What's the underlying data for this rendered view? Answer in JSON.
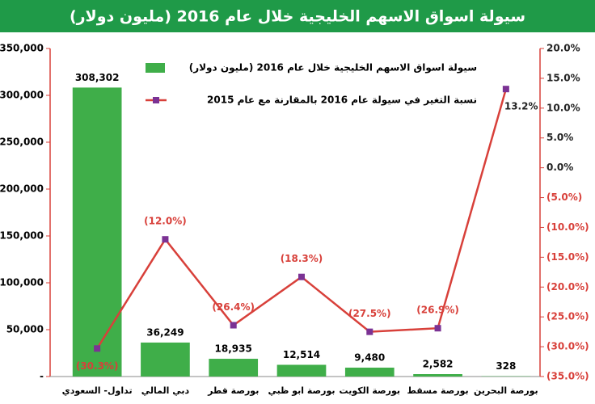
{
  "chart_data": {
    "type": "bar-line",
    "title": "سيولة اسواق الاسهم الخليجية خلال عام 2016 (مليون دولار)",
    "categories": [
      "تداول- السعودي",
      "دبي المالي",
      "بورصة قطر",
      "بورصة ابو ظبي",
      "بورصة الكويت",
      "بورصة مسقط",
      "بورصة البحرين"
    ],
    "series": [
      {
        "name": "سيولة اسواق الاسهم الخليجية خلال عام 2016 (مليون دولار)",
        "type": "bar",
        "color": "#3fae49",
        "values": [
          308302,
          36249,
          18935,
          12514,
          9480,
          2582,
          328
        ],
        "value_labels": [
          "308,302",
          "36,249",
          "18,935",
          "12,514",
          "9,480",
          "2,582",
          "328"
        ]
      },
      {
        "name": "نسبة التغير في سيولة عام 2016 بالمقارنة مع عام 2015",
        "type": "line",
        "axis": "y2",
        "color": "#d8403a",
        "marker_color": "#7b3294",
        "values": [
          -30.3,
          -12.0,
          -26.4,
          -18.3,
          -27.5,
          -26.9,
          13.2
        ],
        "value_labels": [
          "(30.3%)",
          "(12.0%)",
          "(26.4%)",
          "(18.3%)",
          "(27.5%)",
          "(26.9%)",
          "13.2%"
        ]
      }
    ],
    "ylim": [
      0,
      350000
    ],
    "yticks": [
      {
        "value": 0,
        "label": "-"
      },
      {
        "value": 50000,
        "label": "50,000"
      },
      {
        "value": 100000,
        "label": "100,000"
      },
      {
        "value": 150000,
        "label": "150,000"
      },
      {
        "value": 200000,
        "label": "200,000"
      },
      {
        "value": 250000,
        "label": "250,000"
      },
      {
        "value": 300000,
        "label": "300,000"
      },
      {
        "value": 350000,
        "label": "350,000"
      }
    ],
    "y2lim": [
      -35,
      20
    ],
    "y2ticks": [
      {
        "value": -35,
        "label": "(35.0%)"
      },
      {
        "value": -30,
        "label": "(30.0%)"
      },
      {
        "value": -25,
        "label": "(25.0%)"
      },
      {
        "value": -20,
        "label": "(20.0%)"
      },
      {
        "value": -15,
        "label": "(15.0%)"
      },
      {
        "value": -10,
        "label": "(10.0%)"
      },
      {
        "value": -5,
        "label": "(5.0%)"
      },
      {
        "value": 0,
        "label": "0.0%"
      },
      {
        "value": 5,
        "label": "5.0%"
      },
      {
        "value": 10,
        "label": "10.0%"
      },
      {
        "value": 15,
        "label": "15.0%"
      },
      {
        "value": 20,
        "label": "20.0%"
      }
    ],
    "grid": false
  }
}
